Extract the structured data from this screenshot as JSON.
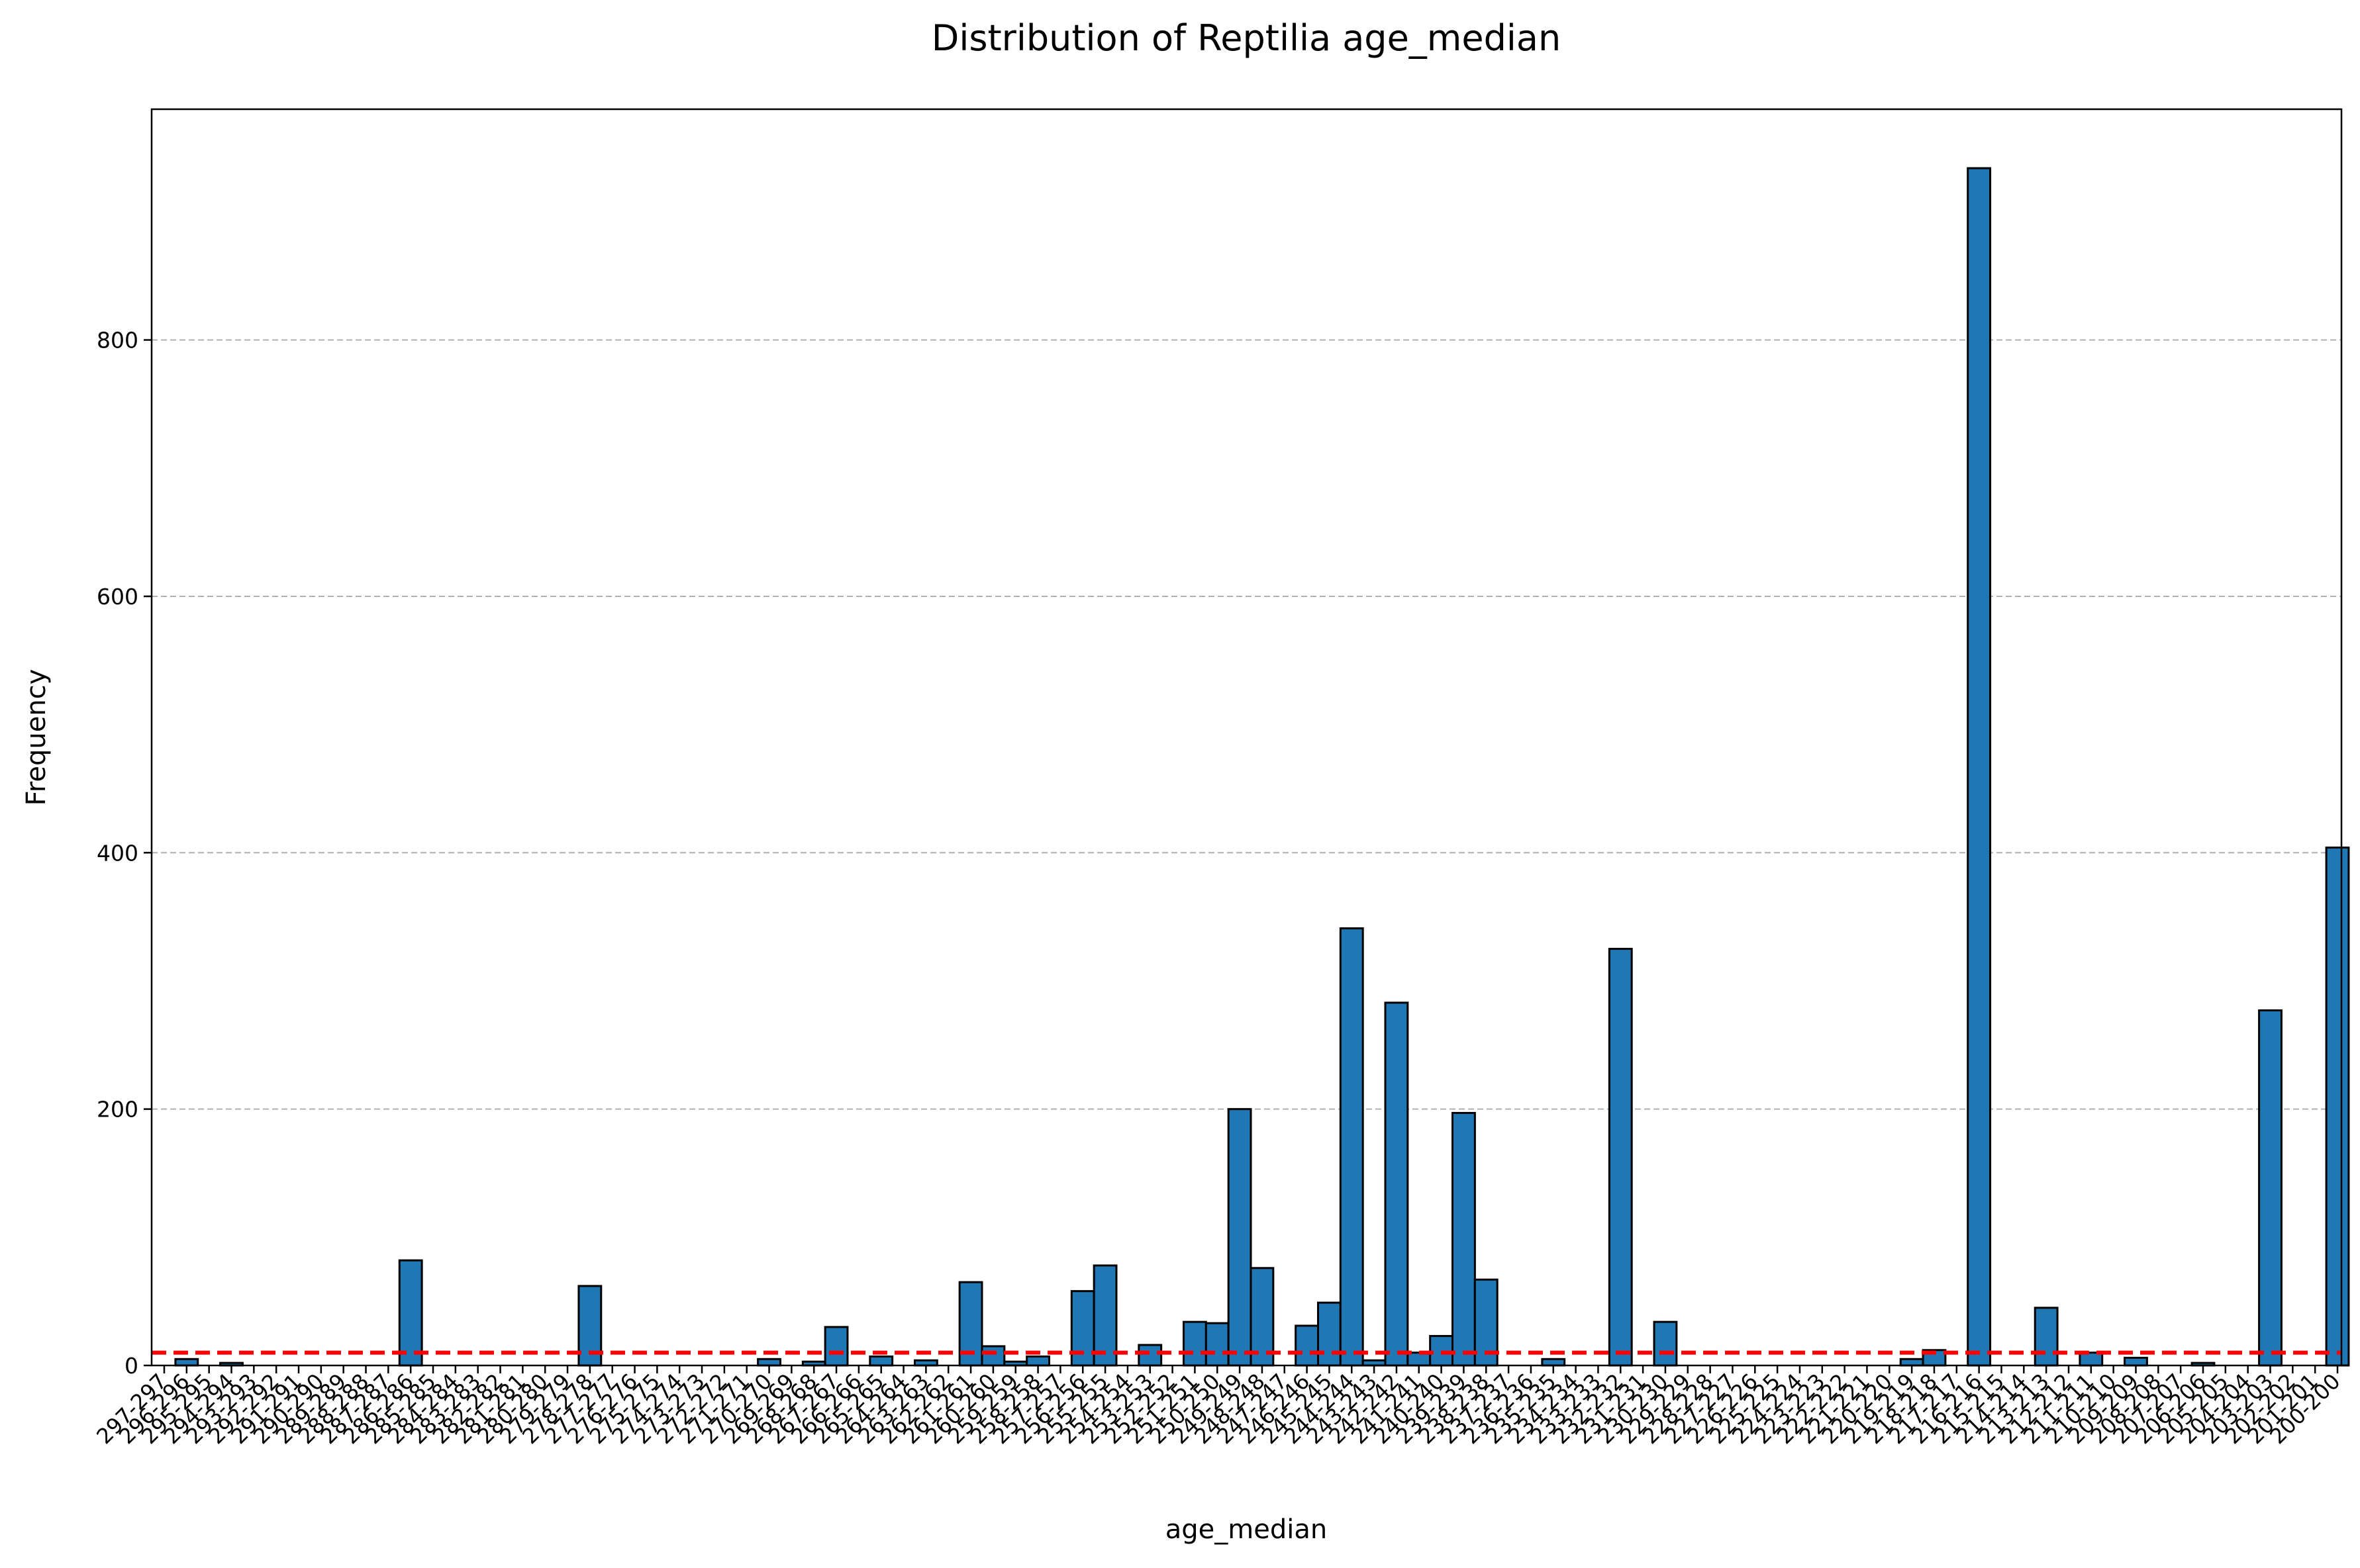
{
  "chart_data": {
    "type": "bar",
    "title": "Distribution of Reptilia age_median",
    "xlabel": "age_median",
    "ylabel": "Frequency",
    "ylim": [
      0,
      980
    ],
    "yticks": [
      0,
      200,
      400,
      600,
      800
    ],
    "grid": "horizontal dashed",
    "reference_line": {
      "value": 10,
      "color": "#ff0000",
      "style": "dashed"
    },
    "bar_color": "#1f77b4",
    "categories": [
      "297-297",
      "296-296",
      "295-295",
      "294-294",
      "293-293",
      "292-292",
      "291-291",
      "290-290",
      "289-289",
      "288-288",
      "287-287",
      "286-286",
      "285-285",
      "284-284",
      "283-283",
      "282-282",
      "281-281",
      "280-280",
      "279-279",
      "278-278",
      "277-277",
      "276-276",
      "275-275",
      "274-274",
      "273-273",
      "272-272",
      "271-271",
      "270-270",
      "269-269",
      "268-268",
      "267-267",
      "266-266",
      "265-265",
      "264-264",
      "263-263",
      "262-262",
      "261-261",
      "260-260",
      "259-259",
      "258-258",
      "257-257",
      "256-256",
      "255-255",
      "254-254",
      "253-253",
      "252-252",
      "251-251",
      "250-250",
      "249-249",
      "248-248",
      "247-247",
      "246-246",
      "245-245",
      "244-244",
      "243-243",
      "242-242",
      "241-241",
      "240-240",
      "239-239",
      "238-238",
      "237-237",
      "236-236",
      "235-235",
      "234-234",
      "233-233",
      "232-232",
      "231-231",
      "230-230",
      "229-229",
      "228-228",
      "227-227",
      "226-226",
      "225-225",
      "224-224",
      "223-223",
      "222-222",
      "221-221",
      "220-220",
      "219-219",
      "218-218",
      "217-217",
      "216-216",
      "215-215",
      "214-214",
      "213-213",
      "212-212",
      "211-211",
      "210-210",
      "209-209",
      "208-208",
      "207-207",
      "206-206",
      "205-205",
      "204-204",
      "203-203",
      "202-202",
      "201-201",
      "200-200"
    ],
    "values": [
      0,
      5,
      0,
      2,
      0,
      0,
      0,
      0,
      0,
      0,
      0,
      82,
      0,
      0,
      0,
      0,
      0,
      0,
      0,
      62,
      0,
      0,
      0,
      0,
      0,
      0,
      0,
      5,
      0,
      3,
      30,
      0,
      7,
      0,
      4,
      0,
      65,
      15,
      3,
      7,
      0,
      58,
      78,
      0,
      16,
      0,
      34,
      33,
      200,
      76,
      0,
      31,
      49,
      341,
      4,
      283,
      10,
      23,
      197,
      67,
      0,
      0,
      5,
      0,
      0,
      325,
      0,
      34,
      0,
      0,
      0,
      0,
      0,
      0,
      0,
      0,
      0,
      0,
      5,
      12,
      0,
      934,
      0,
      0,
      45,
      0,
      10,
      0,
      6,
      0,
      0,
      2,
      0,
      0,
      277,
      0,
      0,
      404
    ]
  }
}
